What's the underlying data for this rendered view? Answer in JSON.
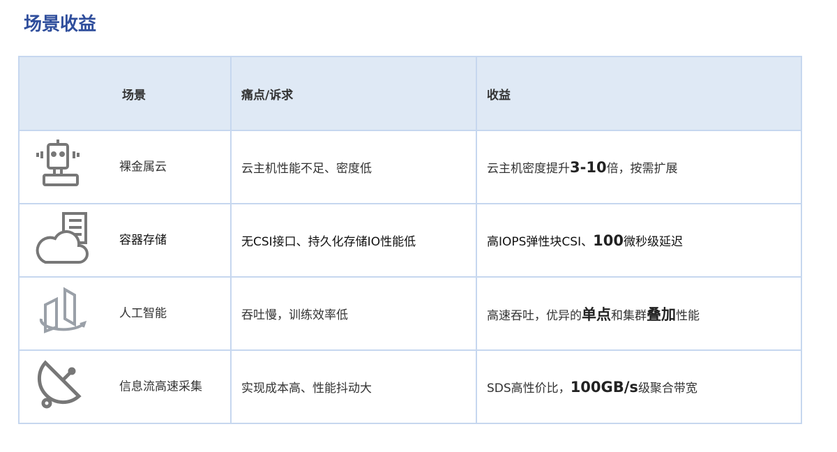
{
  "title": "场景收益",
  "headers": [
    "场景",
    "痛点/诉求",
    "收益"
  ],
  "rows": [
    {
      "icon": "robot-icon",
      "scene": "裸金属云",
      "pain": "云主机性能不足、密度低",
      "benefit": [
        {
          "text": "云主机密度提升",
          "bold": false
        },
        {
          "text": "3-10",
          "bold": true
        },
        {
          "text": "倍，按需扩展",
          "bold": false
        }
      ]
    },
    {
      "icon": "cloud-server-icon",
      "scene": "容器存储",
      "pain": "无CSI接口、持久化存储IO性能低",
      "benefit": [
        {
          "text": "高IOPS弹性块CSI、",
          "bold": false
        },
        {
          "text": "100",
          "bold": true
        },
        {
          "text": "微秒级延迟",
          "bold": false
        }
      ]
    },
    {
      "icon": "panels-rotate-icon",
      "scene": "人工智能",
      "pain": "吞吐慢，训练效率低",
      "benefit": [
        {
          "text": "高速吞吐，优异的",
          "bold": false
        },
        {
          "text": "单点",
          "bold": true
        },
        {
          "text": "和集群",
          "bold": false
        },
        {
          "text": "叠加",
          "bold": true
        },
        {
          "text": "性能",
          "bold": false
        }
      ]
    },
    {
      "icon": "satellite-dish-icon",
      "scene": "信息流高速采集",
      "pain": "实现成本高、性能抖动大",
      "benefit": [
        {
          "text": "SDS高性价比，",
          "bold": false
        },
        {
          "text": "100GB/s",
          "bold": true
        },
        {
          "text": "级聚合带宽",
          "bold": false
        }
      ]
    }
  ]
}
